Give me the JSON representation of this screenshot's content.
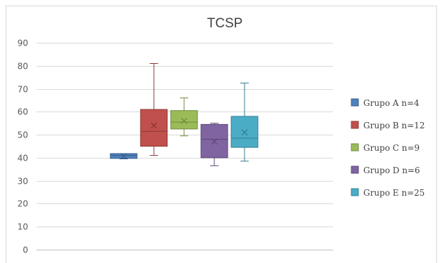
{
  "chart_data": {
    "type": "box",
    "title": "TCSP",
    "xlabel": "",
    "ylabel": "",
    "ylim": [
      0,
      90
    ],
    "yticks": [
      0,
      10,
      20,
      30,
      40,
      50,
      60,
      70,
      80,
      90
    ],
    "grid": "horizontal",
    "legend_position": "right",
    "series": [
      {
        "name": "Grupo A n=4",
        "color": "#4f81bd",
        "edge": "#385d8a",
        "min": 39.5,
        "q1": 39.7,
        "median": 41.0,
        "q3": 41.8,
        "max": 41.8,
        "mean": 40.7
      },
      {
        "name": "Grupo B n=12",
        "color": "#c0504d",
        "edge": "#8c3836",
        "min": 41.0,
        "q1": 45.0,
        "median": 51.5,
        "q3": 61.0,
        "max": 81.0,
        "mean": 54.0
      },
      {
        "name": "Grupo C n=9",
        "color": "#9bbb59",
        "edge": "#71893f",
        "min": 49.5,
        "q1": 52.5,
        "median": 55.5,
        "q3": 60.5,
        "max": 66.0,
        "mean": 56.0
      },
      {
        "name": "Grupo D n=6",
        "color": "#8064a2",
        "edge": "#5c4776",
        "min": 36.5,
        "q1": 40.0,
        "median": 48.0,
        "q3": 54.5,
        "max": 55.0,
        "mean": 47.0
      },
      {
        "name": "Grupo E n=25",
        "color": "#4bacc6",
        "edge": "#357d91",
        "min": 38.5,
        "q1": 44.5,
        "median": 48.5,
        "q3": 58.0,
        "max": 72.5,
        "mean": 51.0
      }
    ]
  }
}
